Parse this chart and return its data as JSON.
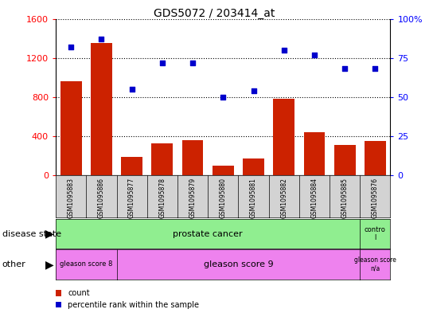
{
  "title": "GDS5072 / 203414_at",
  "samples": [
    "GSM1095883",
    "GSM1095886",
    "GSM1095877",
    "GSM1095878",
    "GSM1095879",
    "GSM1095880",
    "GSM1095881",
    "GSM1095882",
    "GSM1095884",
    "GSM1095885",
    "GSM1095876"
  ],
  "counts": [
    960,
    1350,
    190,
    330,
    360,
    100,
    175,
    780,
    440,
    310,
    350
  ],
  "percentiles": [
    82,
    87,
    55,
    72,
    72,
    50,
    54,
    80,
    77,
    68,
    68
  ],
  "ylim_left": [
    0,
    1600
  ],
  "ylim_right": [
    0,
    100
  ],
  "yticks_left": [
    0,
    400,
    800,
    1200,
    1600
  ],
  "yticks_right": [
    0,
    25,
    50,
    75,
    100
  ],
  "ytick_labels_right": [
    "0",
    "25",
    "50",
    "75",
    "100%"
  ],
  "bar_color": "#cc2200",
  "scatter_color": "#0000cc",
  "plot_bg": "#ffffff",
  "tick_bg": "#d3d3d3",
  "color_prostate": "#90ee90",
  "color_control": "#90ee90",
  "color_gs8": "#ee82ee",
  "color_gs9": "#ee82ee",
  "color_gsna": "#ee82ee",
  "disease_state_prostate": "prostate cancer",
  "disease_state_control": "contro\nl",
  "other_gs8": "gleason score 8",
  "other_gs9": "gleason score 9",
  "other_gsna": "gleason score\nn/a",
  "legend_count": "count",
  "legend_pct": "percentile rank within the sample",
  "n_prostate": 10,
  "n_control": 1,
  "n_gs8": 2,
  "n_gs9": 8,
  "n_gsna": 1
}
